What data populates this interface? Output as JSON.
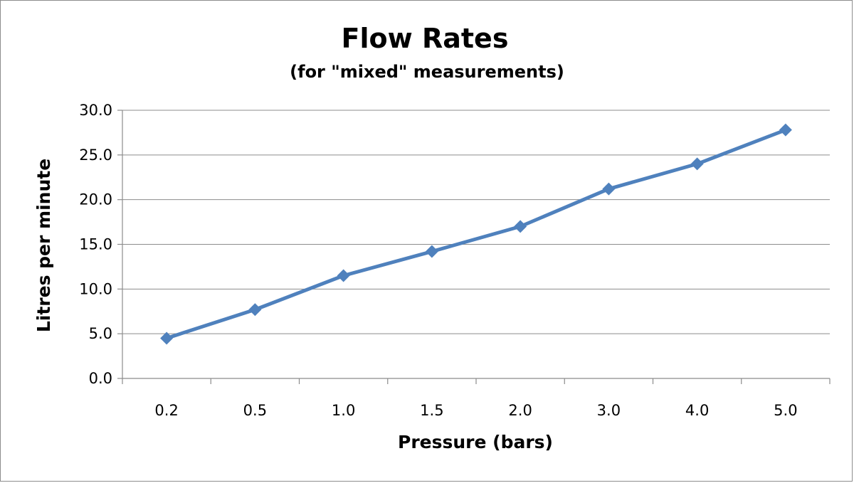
{
  "chart_data": {
    "type": "line",
    "title": "Flow Rates",
    "subtitle": "(for \"mixed\"  measurements)",
    "xlabel": "Pressure (bars)",
    "ylabel": "Litres per minute",
    "categories": [
      "0.2",
      "0.5",
      "1.0",
      "1.5",
      "2.0",
      "3.0",
      "4.0",
      "5.0"
    ],
    "series": [
      {
        "values": [
          4.5,
          7.7,
          11.5,
          14.2,
          17.0,
          21.2,
          24.0,
          27.8
        ]
      }
    ],
    "ylim": [
      0,
      30
    ],
    "yticks": [
      "0.0",
      "5.0",
      "10.0",
      "15.0",
      "20.0",
      "25.0",
      "30.0"
    ],
    "grid": true,
    "legend": "none",
    "colors": {
      "series": "#4f81bd",
      "grid": "#8c8c8c"
    }
  }
}
